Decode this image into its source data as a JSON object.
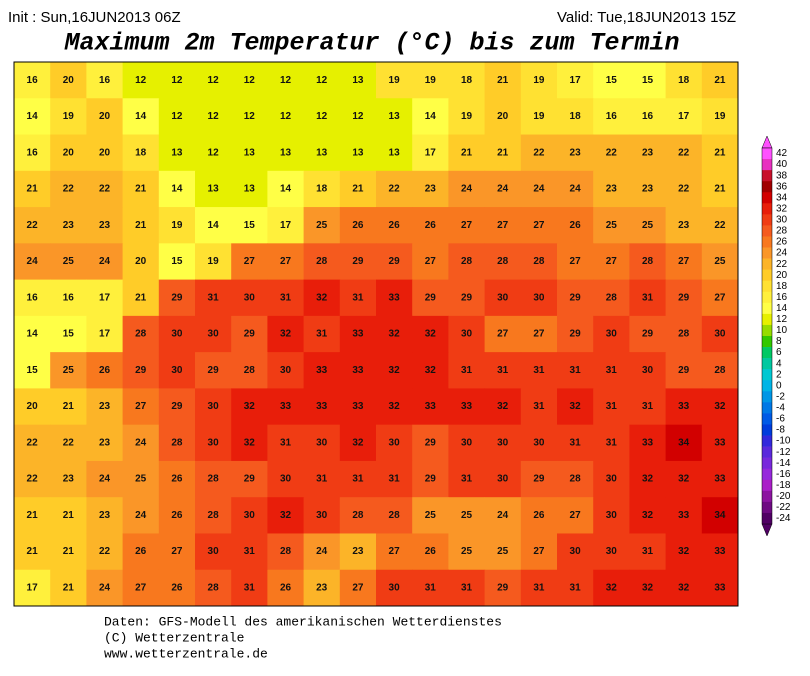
{
  "header": {
    "init": "Init : Sun,16JUN2013 06Z",
    "valid": "Valid: Tue,18JUN2013 15Z",
    "title": "Maximum 2m Temperatur (°C) bis zum Termin"
  },
  "field": {
    "rows": [
      [
        16,
        20,
        16,
        12,
        12,
        12,
        12,
        12,
        12,
        13,
        19,
        19,
        18,
        21,
        19,
        17,
        15,
        15,
        18,
        21
      ],
      [
        14,
        19,
        20,
        14,
        12,
        12,
        12,
        12,
        12,
        12,
        13,
        14,
        19,
        20,
        19,
        18,
        16,
        16,
        17,
        19
      ],
      [
        16,
        20,
        20,
        18,
        13,
        12,
        13,
        13,
        13,
        13,
        13,
        17,
        21,
        21,
        22,
        23,
        22,
        23,
        22,
        21
      ],
      [
        21,
        22,
        22,
        21,
        14,
        13,
        13,
        14,
        18,
        21,
        22,
        23,
        24,
        24,
        24,
        24,
        23,
        23,
        22,
        21
      ],
      [
        22,
        23,
        23,
        21,
        19,
        14,
        15,
        17,
        25,
        26,
        26,
        26,
        27,
        27,
        27,
        26,
        25,
        25,
        23,
        22
      ],
      [
        24,
        25,
        24,
        20,
        15,
        19,
        27,
        27,
        28,
        29,
        29,
        27,
        28,
        28,
        28,
        27,
        27,
        28,
        27,
        25
      ],
      [
        16,
        16,
        17,
        21,
        29,
        31,
        30,
        31,
        32,
        31,
        33,
        29,
        29,
        30,
        30,
        29,
        28,
        31,
        29,
        27
      ],
      [
        14,
        15,
        17,
        28,
        30,
        30,
        29,
        32,
        31,
        33,
        32,
        32,
        30,
        27,
        27,
        29,
        30,
        29,
        28,
        30
      ],
      [
        15,
        25,
        26,
        29,
        30,
        29,
        28,
        30,
        33,
        33,
        32,
        32,
        31,
        31,
        31,
        31,
        31,
        30,
        29,
        28
      ],
      [
        20,
        21,
        23,
        27,
        29,
        30,
        32,
        33,
        33,
        33,
        32,
        33,
        33,
        32,
        31,
        32,
        31,
        31,
        33,
        32
      ],
      [
        22,
        22,
        23,
        24,
        28,
        30,
        32,
        31,
        30,
        32,
        30,
        29,
        30,
        30,
        30,
        31,
        31,
        33,
        34,
        33
      ],
      [
        22,
        23,
        24,
        25,
        26,
        28,
        29,
        30,
        31,
        31,
        31,
        29,
        31,
        30,
        29,
        28,
        30,
        32,
        32,
        33
      ],
      [
        21,
        21,
        23,
        24,
        26,
        28,
        30,
        32,
        30,
        28,
        28,
        25,
        25,
        24,
        26,
        27,
        30,
        32,
        33,
        34
      ],
      [
        21,
        21,
        22,
        26,
        27,
        30,
        31,
        28,
        24,
        23,
        27,
        26,
        25,
        25,
        27,
        30,
        30,
        31,
        32,
        33
      ],
      [
        17,
        21,
        24,
        27,
        26,
        28,
        31,
        26,
        23,
        27,
        30,
        31,
        31,
        29,
        31,
        31,
        32,
        32,
        32,
        33
      ]
    ]
  },
  "legend": [
    {
      "value": 42,
      "color": "#ff50ff"
    },
    {
      "value": 40,
      "color": "#e830c0"
    },
    {
      "value": 38,
      "color": "#c8102a"
    },
    {
      "value": 36,
      "color": "#a00000"
    },
    {
      "value": 34,
      "color": "#d20000"
    },
    {
      "value": 32,
      "color": "#e81e0a"
    },
    {
      "value": 30,
      "color": "#f03c14"
    },
    {
      "value": 28,
      "color": "#f55a1e"
    },
    {
      "value": 26,
      "color": "#f8781e"
    },
    {
      "value": 24,
      "color": "#fa9628"
    },
    {
      "value": 22,
      "color": "#fcb428"
    },
    {
      "value": 20,
      "color": "#ffcc28"
    },
    {
      "value": 18,
      "color": "#ffe132"
    },
    {
      "value": 16,
      "color": "#fff03c"
    },
    {
      "value": 14,
      "color": "#ffff46"
    },
    {
      "value": 12,
      "color": "#e6f000"
    },
    {
      "value": 10,
      "color": "#96dc00"
    },
    {
      "value": 8,
      "color": "#32c800"
    },
    {
      "value": 6,
      "color": "#00c864"
    },
    {
      "value": 4,
      "color": "#00c8a0"
    },
    {
      "value": 2,
      "color": "#00c8d2"
    },
    {
      "value": 0,
      "color": "#00b4e6"
    },
    {
      "value": -2,
      "color": "#0096e6"
    },
    {
      "value": -4,
      "color": "#0078e6"
    },
    {
      "value": -6,
      "color": "#005ae6"
    },
    {
      "value": -8,
      "color": "#003cdc"
    },
    {
      "value": -10,
      "color": "#3228dc"
    },
    {
      "value": -12,
      "color": "#5a28dc"
    },
    {
      "value": -14,
      "color": "#7828dc"
    },
    {
      "value": -16,
      "color": "#9628dc"
    },
    {
      "value": -18,
      "color": "#aa1ec8"
    },
    {
      "value": -20,
      "color": "#8c14a0"
    },
    {
      "value": -22,
      "color": "#6e0a82"
    },
    {
      "value": -24,
      "color": "#500064"
    }
  ],
  "footer": [
    "Daten: GFS-Modell des amerikanischen Wetterdienstes",
    "(C) Wetterzentrale",
    "www.wetterzentrale.de"
  ]
}
